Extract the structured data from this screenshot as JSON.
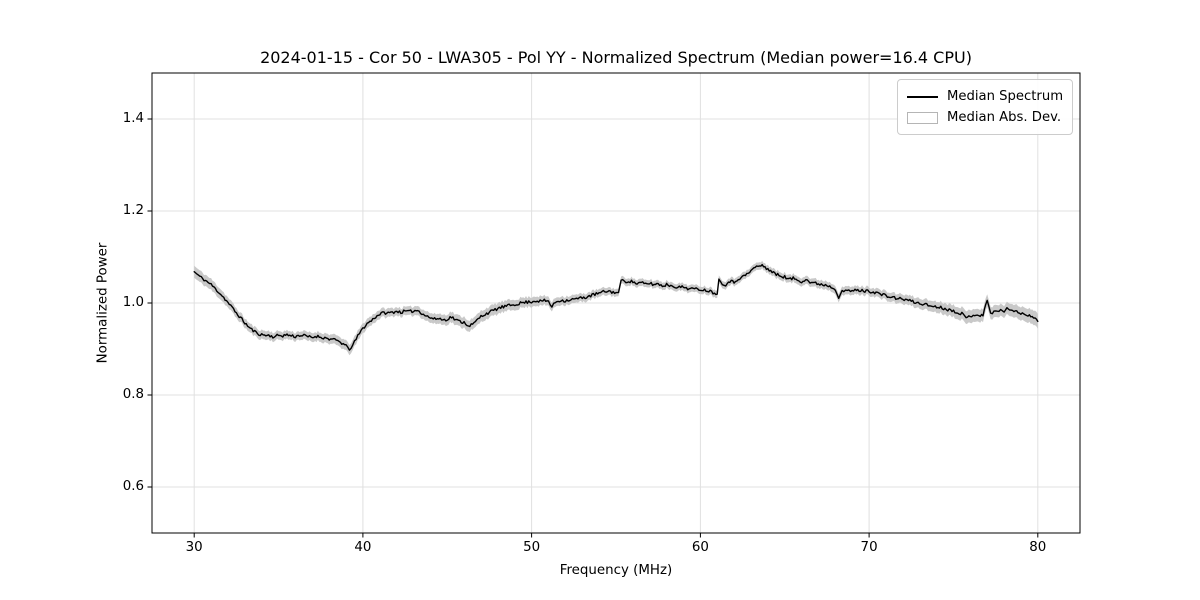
{
  "figure": {
    "background": "#ffffff"
  },
  "chart_data": {
    "type": "line",
    "title": "2024-01-15 - Cor 50 - LWA305 - Pol YY - Normalized Spectrum (Median power=16.4 CPU)",
    "xlabel": "Frequency (MHz)",
    "ylabel": "Normalized Power",
    "xlim": [
      27.5,
      82.5
    ],
    "ylim": [
      0.5,
      1.5
    ],
    "xticks": [
      30,
      40,
      50,
      60,
      70,
      80
    ],
    "xtick_labels": [
      "30",
      "40",
      "50",
      "60",
      "70",
      "80"
    ],
    "yticks": [
      0.6,
      0.8,
      1.0,
      1.2,
      1.4
    ],
    "ytick_labels": [
      "0.6",
      "0.8",
      "1.0",
      "1.2",
      "1.4"
    ],
    "grid": true,
    "legend_position": "upper right",
    "colors": {
      "line": "#000000",
      "band": "#c9c9c9",
      "grid": "#e0e0e0",
      "spine": "#000000",
      "background": "#ffffff"
    },
    "noise_amplitude": 0.0033,
    "legend": {
      "entries": [
        {
          "label": "Median Spectrum",
          "type": "line",
          "color": "#000000"
        },
        {
          "label": "Median Abs. Dev.",
          "type": "patch",
          "color": "#c9c9c9"
        }
      ]
    },
    "band": {
      "name": "Median Abs. Dev.",
      "halfwidth_points": [
        [
          30,
          0.013
        ],
        [
          33,
          0.01
        ],
        [
          36,
          0.009
        ],
        [
          39.2,
          0.011
        ],
        [
          42,
          0.009
        ],
        [
          46,
          0.012
        ],
        [
          48,
          0.012
        ],
        [
          52,
          0.009
        ],
        [
          56,
          0.008
        ],
        [
          60,
          0.008
        ],
        [
          63.5,
          0.008
        ],
        [
          67,
          0.009
        ],
        [
          70,
          0.009
        ],
        [
          73,
          0.011
        ],
        [
          76,
          0.014
        ],
        [
          78,
          0.013
        ],
        [
          80,
          0.016
        ]
      ]
    },
    "series": [
      {
        "name": "Median Spectrum",
        "points": [
          [
            30.0,
            1.068
          ],
          [
            30.25,
            1.06
          ],
          [
            30.5,
            1.053
          ],
          [
            30.75,
            1.047
          ],
          [
            31.0,
            1.04
          ],
          [
            31.25,
            1.031
          ],
          [
            31.5,
            1.022
          ],
          [
            31.75,
            1.012
          ],
          [
            32.0,
            1.001
          ],
          [
            32.25,
            0.99
          ],
          [
            32.5,
            0.978
          ],
          [
            32.75,
            0.968
          ],
          [
            33.0,
            0.957
          ],
          [
            33.25,
            0.947
          ],
          [
            33.5,
            0.94
          ],
          [
            33.75,
            0.934
          ],
          [
            34.0,
            0.931
          ],
          [
            34.25,
            0.93
          ],
          [
            34.5,
            0.929
          ],
          [
            34.75,
            0.926
          ],
          [
            35.0,
            0.93
          ],
          [
            35.25,
            0.929
          ],
          [
            35.5,
            0.931
          ],
          [
            35.75,
            0.929
          ],
          [
            36.0,
            0.927
          ],
          [
            36.25,
            0.93
          ],
          [
            36.5,
            0.929
          ],
          [
            36.75,
            0.927
          ],
          [
            37.0,
            0.925
          ],
          [
            37.25,
            0.928
          ],
          [
            37.5,
            0.926
          ],
          [
            37.75,
            0.924
          ],
          [
            38.0,
            0.922
          ],
          [
            38.25,
            0.92
          ],
          [
            38.5,
            0.918
          ],
          [
            38.75,
            0.913
          ],
          [
            39.0,
            0.906
          ],
          [
            39.2,
            0.9
          ],
          [
            39.4,
            0.908
          ],
          [
            39.6,
            0.922
          ],
          [
            39.8,
            0.934
          ],
          [
            40.0,
            0.945
          ],
          [
            40.25,
            0.955
          ],
          [
            40.5,
            0.962
          ],
          [
            40.75,
            0.97
          ],
          [
            41.0,
            0.976
          ],
          [
            41.25,
            0.979
          ],
          [
            41.5,
            0.978
          ],
          [
            41.75,
            0.98
          ],
          [
            42.0,
            0.982
          ],
          [
            42.25,
            0.98
          ],
          [
            42.5,
            0.982
          ],
          [
            42.75,
            0.981
          ],
          [
            43.0,
            0.983
          ],
          [
            43.25,
            0.984
          ],
          [
            43.5,
            0.978
          ],
          [
            43.75,
            0.972
          ],
          [
            44.0,
            0.968
          ],
          [
            44.25,
            0.965
          ],
          [
            44.5,
            0.967
          ],
          [
            44.75,
            0.963
          ],
          [
            45.0,
            0.965
          ],
          [
            45.25,
            0.97
          ],
          [
            45.5,
            0.963
          ],
          [
            45.75,
            0.96
          ],
          [
            46.0,
            0.958
          ],
          [
            46.25,
            0.951
          ],
          [
            46.5,
            0.953
          ],
          [
            46.75,
            0.962
          ],
          [
            47.0,
            0.971
          ],
          [
            47.25,
            0.976
          ],
          [
            47.5,
            0.98
          ],
          [
            47.75,
            0.984
          ],
          [
            48.0,
            0.988
          ],
          [
            48.25,
            0.991
          ],
          [
            48.5,
            0.993
          ],
          [
            48.75,
            0.995
          ],
          [
            49.0,
            0.997
          ],
          [
            49.25,
            0.999
          ],
          [
            49.5,
            1.001
          ],
          [
            49.75,
            1.002
          ],
          [
            50.0,
            1.003
          ],
          [
            50.25,
            1.005
          ],
          [
            50.5,
            1.004
          ],
          [
            50.75,
            1.005
          ],
          [
            51.0,
            1.004
          ],
          [
            51.2,
            0.991
          ],
          [
            51.4,
            1.002
          ],
          [
            51.75,
            1.006
          ],
          [
            52.0,
            1.005
          ],
          [
            52.25,
            1.007
          ],
          [
            52.5,
            1.008
          ],
          [
            52.75,
            1.01
          ],
          [
            53.0,
            1.011
          ],
          [
            53.25,
            1.013
          ],
          [
            53.5,
            1.016
          ],
          [
            53.75,
            1.019
          ],
          [
            54.0,
            1.021
          ],
          [
            54.25,
            1.024
          ],
          [
            54.5,
            1.026
          ],
          [
            54.75,
            1.024
          ],
          [
            55.0,
            1.023
          ],
          [
            55.15,
            1.021
          ],
          [
            55.3,
            1.05
          ],
          [
            55.5,
            1.046
          ],
          [
            55.75,
            1.048
          ],
          [
            56.0,
            1.046
          ],
          [
            56.25,
            1.042
          ],
          [
            56.5,
            1.044
          ],
          [
            56.75,
            1.041
          ],
          [
            57.0,
            1.043
          ],
          [
            57.25,
            1.04
          ],
          [
            57.5,
            1.042
          ],
          [
            57.75,
            1.037
          ],
          [
            58.0,
            1.04
          ],
          [
            58.25,
            1.038
          ],
          [
            58.5,
            1.036
          ],
          [
            58.75,
            1.034
          ],
          [
            59.0,
            1.035
          ],
          [
            59.25,
            1.032
          ],
          [
            59.5,
            1.031
          ],
          [
            59.75,
            1.03
          ],
          [
            60.0,
            1.03
          ],
          [
            60.25,
            1.028
          ],
          [
            60.5,
            1.027
          ],
          [
            60.75,
            1.023
          ],
          [
            61.0,
            1.021
          ],
          [
            61.1,
            1.05
          ],
          [
            61.3,
            1.043
          ],
          [
            61.5,
            1.04
          ],
          [
            61.75,
            1.048
          ],
          [
            62.0,
            1.045
          ],
          [
            62.25,
            1.053
          ],
          [
            62.5,
            1.057
          ],
          [
            62.75,
            1.062
          ],
          [
            63.0,
            1.07
          ],
          [
            63.25,
            1.078
          ],
          [
            63.5,
            1.081
          ],
          [
            63.75,
            1.08
          ],
          [
            64.0,
            1.074
          ],
          [
            64.25,
            1.068
          ],
          [
            64.5,
            1.062
          ],
          [
            64.75,
            1.059
          ],
          [
            65.0,
            1.057
          ],
          [
            65.25,
            1.051
          ],
          [
            65.5,
            1.054
          ],
          [
            65.75,
            1.05
          ],
          [
            66.0,
            1.047
          ],
          [
            66.25,
            1.052
          ],
          [
            66.5,
            1.045
          ],
          [
            66.75,
            1.043
          ],
          [
            67.0,
            1.042
          ],
          [
            67.25,
            1.04
          ],
          [
            67.5,
            1.039
          ],
          [
            67.75,
            1.035
          ],
          [
            68.0,
            1.031
          ],
          [
            68.2,
            1.013
          ],
          [
            68.4,
            1.027
          ],
          [
            68.6,
            1.025
          ],
          [
            68.8,
            1.027
          ],
          [
            69.0,
            1.026
          ],
          [
            69.25,
            1.028
          ],
          [
            69.5,
            1.027
          ],
          [
            69.75,
            1.026
          ],
          [
            70.0,
            1.026
          ],
          [
            70.25,
            1.024
          ],
          [
            70.5,
            1.022
          ],
          [
            70.75,
            1.018
          ],
          [
            71.0,
            1.016
          ],
          [
            71.25,
            1.013
          ],
          [
            71.5,
            1.011
          ],
          [
            71.75,
            1.01
          ],
          [
            72.0,
            1.008
          ],
          [
            72.25,
            1.007
          ],
          [
            72.5,
            1.004
          ],
          [
            72.75,
            1.001
          ],
          [
            73.0,
            0.999
          ],
          [
            73.25,
            0.998
          ],
          [
            73.5,
            0.995
          ],
          [
            73.75,
            0.993
          ],
          [
            74.0,
            0.992
          ],
          [
            74.25,
            0.99
          ],
          [
            74.5,
            0.988
          ],
          [
            74.75,
            0.985
          ],
          [
            75.0,
            0.983
          ],
          [
            75.25,
            0.98
          ],
          [
            75.5,
            0.977
          ],
          [
            75.75,
            0.967
          ],
          [
            76.0,
            0.972
          ],
          [
            76.25,
            0.975
          ],
          [
            76.5,
            0.974
          ],
          [
            76.75,
            0.972
          ],
          [
            77.0,
            1.008
          ],
          [
            77.2,
            0.977
          ],
          [
            77.4,
            0.983
          ],
          [
            77.6,
            0.98
          ],
          [
            77.8,
            0.985
          ],
          [
            78.0,
            0.982
          ],
          [
            78.25,
            0.989
          ],
          [
            78.5,
            0.984
          ],
          [
            78.75,
            0.98
          ],
          [
            79.0,
            0.978
          ],
          [
            79.25,
            0.976
          ],
          [
            79.5,
            0.974
          ],
          [
            79.75,
            0.968
          ],
          [
            80.0,
            0.96
          ]
        ]
      }
    ]
  }
}
